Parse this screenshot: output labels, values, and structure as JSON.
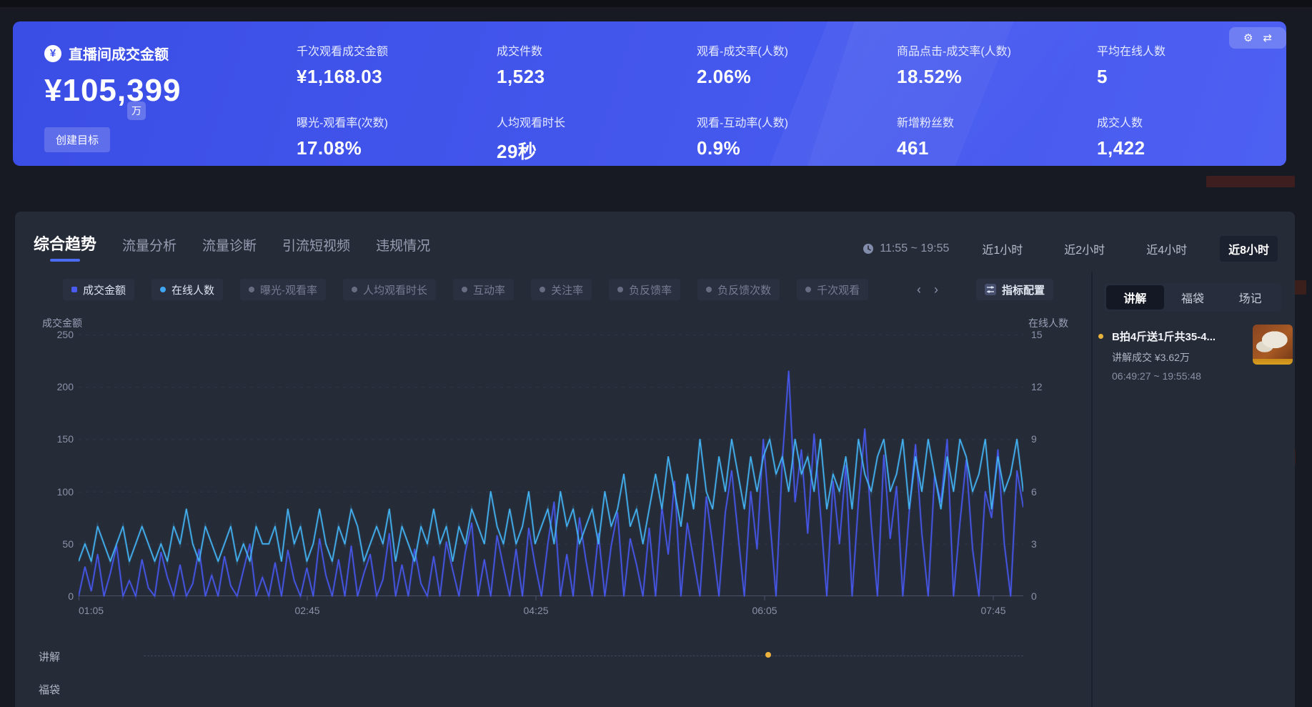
{
  "banner": {
    "title": "直播间成交金额",
    "currency_symbol": "¥",
    "amount": "¥105,399",
    "amount_unit": "万",
    "create_goal_button": "创建目标",
    "gear_icon": "⚙",
    "swap_icon": "⇄",
    "kpis": [
      {
        "label": "千次观看成交金额",
        "value": "¥1,168.03"
      },
      {
        "label": "曝光-观看率(次数)",
        "value": "17.08%"
      },
      {
        "label": "成交件数",
        "value": "1,523"
      },
      {
        "label": "人均观看时长",
        "value": "29秒"
      },
      {
        "label": "观看-成交率(人数)",
        "value": "2.06%"
      },
      {
        "label": "观看-互动率(人数)",
        "value": "0.9%"
      },
      {
        "label": "商品点击-成交率(人数)",
        "value": "18.52%"
      },
      {
        "label": "新增粉丝数",
        "value": "461"
      },
      {
        "label": "平均在线人数",
        "value": "5"
      },
      {
        "label": "成交人数",
        "value": "1,422"
      }
    ]
  },
  "nav": {
    "tabs": [
      {
        "label": "综合趋势",
        "active": true
      },
      {
        "label": "流量分析",
        "active": false
      },
      {
        "label": "流量诊断",
        "active": false
      },
      {
        "label": "引流短视频",
        "active": false
      },
      {
        "label": "违规情况",
        "active": false
      }
    ],
    "time_range": "11:55 ~ 19:55",
    "quick_ranges": [
      {
        "label": "近1小时",
        "active": false
      },
      {
        "label": "近2小时",
        "active": false
      },
      {
        "label": "近4小时",
        "active": false
      },
      {
        "label": "近8小时",
        "active": true
      }
    ]
  },
  "metric_chips": [
    {
      "label": "成交金额",
      "active": true,
      "dot": "#4a5cf0",
      "shape": "square"
    },
    {
      "label": "在线人数",
      "active": true,
      "dot": "#3fa6f2",
      "shape": "circle"
    },
    {
      "label": "曝光-观看率",
      "active": false,
      "dot": "#666d82",
      "shape": "circle"
    },
    {
      "label": "人均观看时长",
      "active": false,
      "dot": "#666d82",
      "shape": "circle"
    },
    {
      "label": "互动率",
      "active": false,
      "dot": "#666d82",
      "shape": "circle"
    },
    {
      "label": "关注率",
      "active": false,
      "dot": "#666d82",
      "shape": "circle"
    },
    {
      "label": "负反馈率",
      "active": false,
      "dot": "#666d82",
      "shape": "circle"
    },
    {
      "label": "负反馈次数",
      "active": false,
      "dot": "#666d82",
      "shape": "circle"
    },
    {
      "label": "千次观看",
      "active": false,
      "dot": "#666d82",
      "shape": "circle"
    }
  ],
  "chip_nav": {
    "prev_icon": "‹",
    "next_icon": "›"
  },
  "metric_config_button": "指标配置",
  "chart_data": {
    "type": "line",
    "x_ticks": [
      "01:05",
      "02:45",
      "04:25",
      "06:05",
      "07:45"
    ],
    "left_axis": {
      "title": "成交金额",
      "ticks": [
        0,
        50,
        100,
        150,
        200,
        250
      ],
      "range": [
        0,
        250
      ]
    },
    "right_axis": {
      "title": "在线人数",
      "ticks": [
        0,
        3,
        6,
        9,
        12,
        15
      ],
      "range": [
        0,
        15
      ]
    },
    "grid": "dashed-horizontal",
    "legend_position": "top-left-chips",
    "series": [
      {
        "name": "成交金额",
        "axis": "left",
        "color": "#4657ea",
        "values": [
          0,
          28,
          5,
          40,
          0,
          22,
          48,
          0,
          15,
          0,
          35,
          8,
          0,
          42,
          18,
          0,
          30,
          0,
          12,
          45,
          0,
          20,
          0,
          38,
          10,
          0,
          25,
          50,
          0,
          18,
          0,
          32,
          0,
          44,
          15,
          0,
          27,
          0,
          55,
          20,
          0,
          35,
          0,
          48,
          0,
          22,
          40,
          0,
          16,
          60,
          0,
          30,
          0,
          45,
          12,
          0,
          38,
          0,
          52,
          25,
          0,
          42,
          70,
          0,
          35,
          0,
          58,
          28,
          0,
          45,
          0,
          65,
          30,
          0,
          50,
          90,
          0,
          40,
          0,
          75,
          35,
          0,
          60,
          0,
          48,
          80,
          0,
          55,
          30,
          0,
          65,
          0,
          85,
          40,
          110,
          0,
          70,
          35,
          0,
          95,
          50,
          0,
          80,
          120,
          60,
          0,
          100,
          45,
          150,
          75,
          0,
          130,
          215,
          90,
          140,
          60,
          155,
          80,
          0,
          110,
          50,
          125,
          0,
          90,
          160,
          70,
          0,
          135,
          55,
          105,
          0,
          80,
          145,
          60,
          0,
          115,
          90,
          150,
          0,
          70,
          130,
          45,
          0,
          100,
          75,
          140,
          50,
          0,
          120,
          85
        ]
      },
      {
        "name": "在线人数",
        "axis": "right",
        "color": "#43b3f3",
        "values": [
          2,
          3,
          2,
          4,
          3,
          2,
          3,
          4,
          2,
          3,
          4,
          3,
          2,
          3,
          2,
          4,
          3,
          5,
          3,
          2,
          4,
          3,
          2,
          3,
          4,
          2,
          3,
          2,
          4,
          3,
          3,
          4,
          2,
          5,
          3,
          4,
          2,
          3,
          5,
          3,
          2,
          4,
          3,
          5,
          4,
          2,
          3,
          4,
          3,
          5,
          2,
          4,
          3,
          2,
          4,
          3,
          5,
          3,
          4,
          2,
          4,
          3,
          5,
          4,
          3,
          6,
          4,
          3,
          5,
          3,
          4,
          6,
          3,
          4,
          5,
          3,
          6,
          4,
          5,
          3,
          4,
          5,
          3,
          6,
          4,
          5,
          7,
          4,
          5,
          3,
          5,
          7,
          5,
          8,
          6,
          4,
          7,
          5,
          9,
          6,
          5,
          8,
          6,
          9,
          7,
          5,
          8,
          6,
          8,
          9,
          7,
          8,
          6,
          9,
          7,
          8,
          6,
          9,
          5,
          7,
          6,
          8,
          5,
          9,
          7,
          6,
          8,
          9,
          6,
          7,
          9,
          5,
          8,
          6,
          9,
          7,
          5,
          8,
          6,
          9,
          8,
          6,
          7,
          9,
          5,
          8,
          6,
          7,
          9,
          6
        ]
      }
    ]
  },
  "event_rows": [
    {
      "label": "讲解",
      "marker_at": 0.73,
      "marker_color": "#ecb23d"
    },
    {
      "label": "福袋"
    }
  ],
  "side_panel": {
    "tabs": [
      {
        "label": "讲解",
        "active": true
      },
      {
        "label": "福袋",
        "active": false
      },
      {
        "label": "场记",
        "active": false
      }
    ],
    "item": {
      "dot_color": "#e8b33c",
      "title": "B拍4斤送1斤共35-4...",
      "detail": "讲解成交 ¥3.62万",
      "time": "06:49:27 ~ 19:55:48"
    }
  }
}
